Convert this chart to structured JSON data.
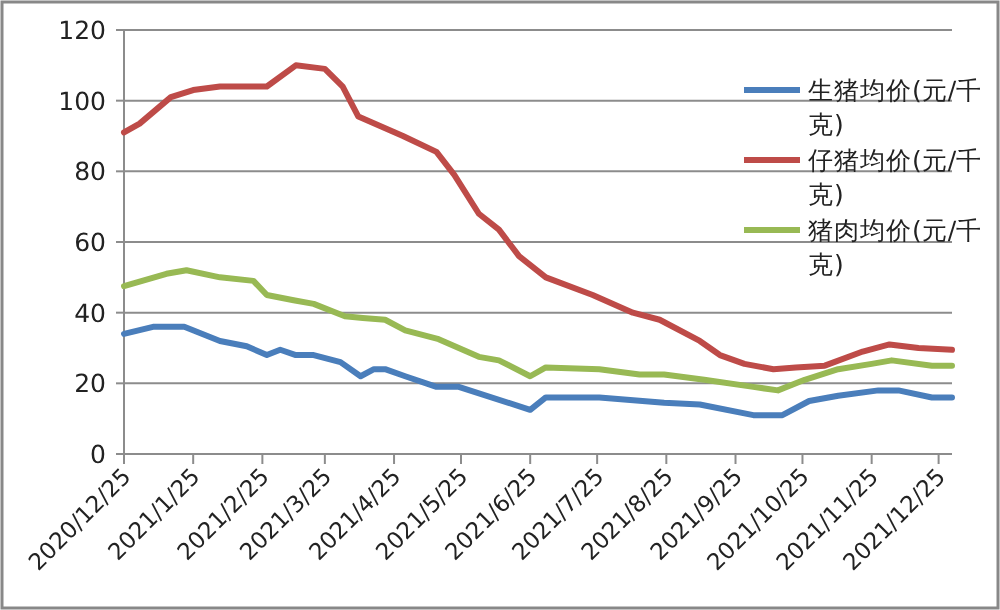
{
  "chart_data": {
    "type": "line",
    "legend": "top right",
    "grid": "y",
    "xlim": [
      "2020-12-25",
      "2021-12-31"
    ],
    "ylim": [
      0,
      120
    ],
    "yticks": [
      0,
      20,
      40,
      60,
      80,
      100,
      120
    ],
    "xticks": [
      {
        "value": "2020-12-25",
        "label": "2020/12/25"
      },
      {
        "value": "2021-01-25",
        "label": "2021/1/25"
      },
      {
        "value": "2021-02-25",
        "label": "2021/2/25"
      },
      {
        "value": "2021-03-25",
        "label": "2021/3/25"
      },
      {
        "value": "2021-04-25",
        "label": "2021/4/25"
      },
      {
        "value": "2021-05-25",
        "label": "2021/5/25"
      },
      {
        "value": "2021-06-25",
        "label": "2021/6/25"
      },
      {
        "value": "2021-07-25",
        "label": "2021/7/25"
      },
      {
        "value": "2021-08-25",
        "label": "2021/8/25"
      },
      {
        "value": "2021-09-25",
        "label": "2021/9/25"
      },
      {
        "value": "2021-10-25",
        "label": "2021/10/25"
      },
      {
        "value": "2021-11-25",
        "label": "2021/11/25"
      },
      {
        "value": "2021-12-25",
        "label": "2021/12/25"
      }
    ],
    "series": [
      {
        "name": "生猪均价(元/千克)",
        "color": "#4a7ebb",
        "x": [
          "2020-12-25",
          "2021-01-07",
          "2021-01-21",
          "2021-02-06",
          "2021-02-18",
          "2021-02-27",
          "2021-03-05",
          "2021-03-12",
          "2021-03-20",
          "2021-04-01",
          "2021-04-10",
          "2021-04-16",
          "2021-04-21",
          "2021-04-30",
          "2021-05-14",
          "2021-05-24",
          "2021-06-25",
          "2021-07-02",
          "2021-07-26",
          "2021-08-24",
          "2021-09-09",
          "2021-10-03",
          "2021-10-16",
          "2021-10-28",
          "2021-11-10",
          "2021-11-28",
          "2021-12-07",
          "2021-12-22",
          "2021-12-31"
        ],
        "values": [
          34,
          36,
          36,
          32,
          30.5,
          28,
          29.5,
          28,
          28,
          26,
          22,
          24,
          24,
          22,
          19,
          19,
          12.5,
          16,
          16,
          14.5,
          14,
          11,
          11,
          15,
          16.5,
          18,
          18,
          16,
          16
        ]
      },
      {
        "name": "仔猪均价(元/千克)",
        "color": "#be4b48",
        "x": [
          "2020-12-25",
          "2021-01-01",
          "2021-01-15",
          "2021-01-25",
          "2021-02-06",
          "2021-02-27",
          "2021-03-12",
          "2021-03-25",
          "2021-04-02",
          "2021-04-09",
          "2021-04-29",
          "2021-05-14",
          "2021-05-22",
          "2021-06-02",
          "2021-06-11",
          "2021-06-20",
          "2021-07-02",
          "2021-07-23",
          "2021-08-10",
          "2021-08-22",
          "2021-09-09",
          "2021-09-18",
          "2021-09-29",
          "2021-10-12",
          "2021-10-22",
          "2021-11-04",
          "2021-11-21",
          "2021-12-03",
          "2021-12-16",
          "2021-12-31"
        ],
        "values": [
          91,
          93.5,
          101,
          103,
          104,
          104,
          110,
          109,
          104,
          95.5,
          90,
          85.5,
          79,
          68,
          63.5,
          56,
          50,
          45,
          40,
          38,
          32,
          28,
          25.5,
          24,
          24.5,
          25,
          29,
          31,
          30,
          29.5
        ]
      },
      {
        "name": "猪肉均价(元/千克)",
        "color": "#98b954",
        "x": [
          "2020-12-25",
          "2021-01-13",
          "2021-01-22",
          "2021-02-06",
          "2021-02-21",
          "2021-02-27",
          "2021-03-11",
          "2021-03-20",
          "2021-04-03",
          "2021-04-11",
          "2021-04-21",
          "2021-04-30",
          "2021-05-15",
          "2021-06-02",
          "2021-06-11",
          "2021-06-25",
          "2021-07-02",
          "2021-07-26",
          "2021-08-13",
          "2021-08-24",
          "2021-09-11",
          "2021-10-03",
          "2021-10-14",
          "2021-10-26",
          "2021-11-10",
          "2021-11-25",
          "2021-12-04",
          "2021-12-22",
          "2021-12-31"
        ],
        "values": [
          47.5,
          51,
          52,
          50,
          49,
          45,
          43.5,
          42.5,
          39,
          38.5,
          38,
          35,
          32.5,
          27.5,
          26.5,
          22,
          24.5,
          24,
          22.5,
          22.5,
          21,
          19,
          18,
          21,
          24,
          25.5,
          26.5,
          25,
          25
        ]
      }
    ]
  }
}
